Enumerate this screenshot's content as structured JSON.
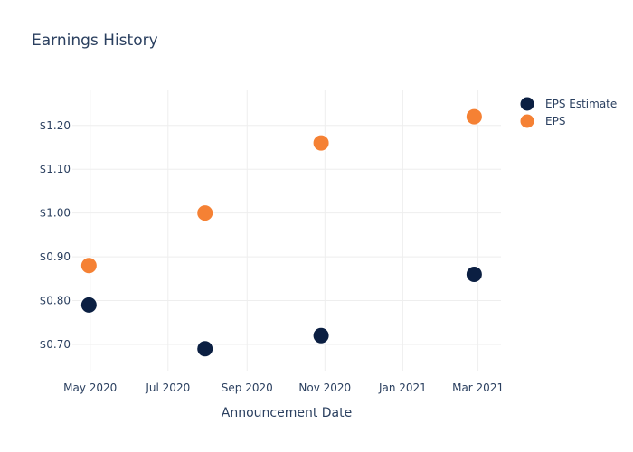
{
  "chart_data": {
    "type": "scatter",
    "title": "Earnings History",
    "xlabel": "Announcement Date",
    "ylabel": "",
    "x_ticks": [
      "May 2020",
      "Jul 2020",
      "Sep 2020",
      "Nov 2020",
      "Jan 2021",
      "Mar 2021"
    ],
    "x_tick_dates": [
      "2020-05-01",
      "2020-07-01",
      "2020-09-01",
      "2020-11-01",
      "2021-01-01",
      "2021-03-01"
    ],
    "xlim": [
      "2020-04-17",
      "2021-03-19"
    ],
    "y_ticks": [
      "$0.70",
      "$0.80",
      "$0.90",
      "$1.00",
      "$1.10",
      "$1.20"
    ],
    "y_tick_values": [
      0.7,
      0.8,
      0.9,
      1.0,
      1.1,
      1.2
    ],
    "ylim": [
      0.64,
      1.28
    ],
    "grid": true,
    "legend_position": "top-right",
    "series": [
      {
        "name": "EPS Estimate",
        "color": "#0b1f42",
        "points": [
          {
            "x": "2020-04-30",
            "y": 0.79
          },
          {
            "x": "2020-07-30",
            "y": 0.69
          },
          {
            "x": "2020-10-29",
            "y": 0.72
          },
          {
            "x": "2021-02-26",
            "y": 0.86
          }
        ]
      },
      {
        "name": "EPS",
        "color": "#f58134",
        "points": [
          {
            "x": "2020-04-30",
            "y": 0.88
          },
          {
            "x": "2020-07-30",
            "y": 1.0
          },
          {
            "x": "2020-10-29",
            "y": 1.16
          },
          {
            "x": "2021-02-26",
            "y": 1.22
          }
        ]
      }
    ]
  }
}
